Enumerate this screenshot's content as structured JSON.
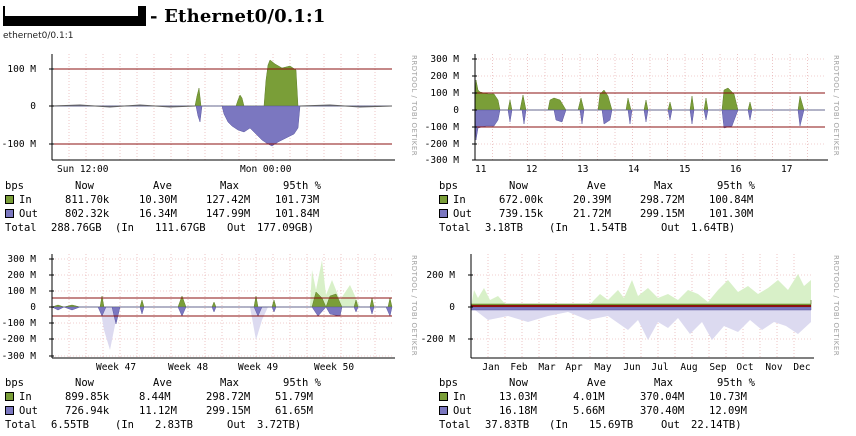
{
  "header": {
    "title": "- Ethernet0/0.1:1",
    "subtitle": "ethernet0/0.1:1"
  },
  "colors": {
    "in": "#7a9e38",
    "out": "#7b77c0",
    "threshold": "#8b1010",
    "grid": "#e2a0a0"
  },
  "legend_headers": {
    "unit": "bps",
    "now": "Now",
    "ave": "Ave",
    "max": "Max",
    "p95": "95th %"
  },
  "watermark": "RRDTOOL / TOBI OETIKER",
  "graphs": [
    {
      "yticks": [
        "100 M",
        "0",
        "-100 M"
      ],
      "xticks": [
        "Sun 12:00",
        "Mon 00:00"
      ],
      "in": {
        "label": "In",
        "now": "811.70k",
        "ave": "10.30M",
        "max": "127.42M",
        "p95": "101.73M"
      },
      "out": {
        "label": "Out",
        "now": "802.32k",
        "ave": "16.34M",
        "max": "147.99M",
        "p95": "101.84M"
      },
      "total": {
        "label": "Total",
        "value": "288.76GB",
        "in_label": "(In",
        "in": "111.67GB",
        "out_label": "Out",
        "out": "177.09GB)"
      }
    },
    {
      "yticks": [
        "300 M",
        "200 M",
        "100 M",
        "0",
        "-100 M",
        "-200 M",
        "-300 M"
      ],
      "xticks": [
        "11",
        "12",
        "13",
        "14",
        "15",
        "16",
        "17"
      ],
      "in": {
        "label": "In",
        "now": "672.00k",
        "ave": "20.39M",
        "max": "298.72M",
        "p95": "100.84M"
      },
      "out": {
        "label": "Out",
        "now": "739.15k",
        "ave": "21.72M",
        "max": "299.15M",
        "p95": "101.30M"
      },
      "total": {
        "label": "Total",
        "value": "3.18TB",
        "in_label": "(In",
        "in": "1.54TB",
        "out_label": "Out",
        "out": "1.64TB)"
      }
    },
    {
      "yticks": [
        "300 M",
        "200 M",
        "100 M",
        "0",
        "-100 M",
        "-200 M",
        "-300 M"
      ],
      "xticks": [
        "Week 47",
        "Week 48",
        "Week 49",
        "Week 50"
      ],
      "in": {
        "label": "In",
        "now": "899.85k",
        "ave": "8.44M",
        "max": "298.72M",
        "p95": "51.79M"
      },
      "out": {
        "label": "Out",
        "now": "726.94k",
        "ave": "11.12M",
        "max": "299.15M",
        "p95": "61.65M"
      },
      "total": {
        "label": "Total",
        "value": "6.55TB",
        "in_label": "(In",
        "in": "2.83TB",
        "out_label": "Out",
        "out": "3.72TB)"
      }
    },
    {
      "yticks": [
        "200 M",
        "0",
        "-200 M"
      ],
      "xticks": [
        "Jan",
        "Feb",
        "Mar",
        "Apr",
        "May",
        "Jun",
        "Jul",
        "Aug",
        "Sep",
        "Oct",
        "Nov",
        "Dec"
      ],
      "in": {
        "label": "In",
        "now": "13.03M",
        "ave": "4.01M",
        "max": "370.04M",
        "p95": "10.73M"
      },
      "out": {
        "label": "Out",
        "now": "16.18M",
        "ave": "5.66M",
        "max": "370.40M",
        "p95": "12.09M"
      },
      "total": {
        "label": "Total",
        "value": "37.83TB",
        "in_label": "(In",
        "in": "15.69TB",
        "out_label": "Out",
        "out": "22.14TB)"
      }
    }
  ]
}
